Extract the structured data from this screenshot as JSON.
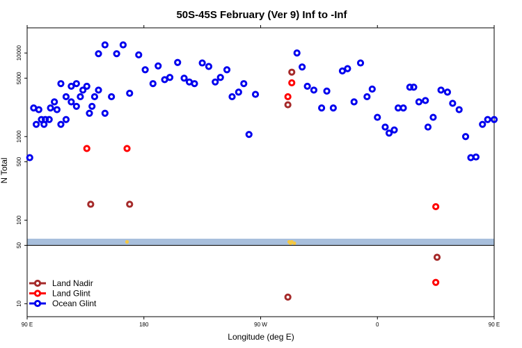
{
  "chart_data": {
    "type": "scatter",
    "title": "50S-45S February (Ver 9)   Inf to -Inf",
    "xlabel": "Longitude (deg E)",
    "ylabel": "N Total",
    "y_scale": "log",
    "xlim": [
      90,
      450
    ],
    "ylim": [
      7,
      20000
    ],
    "x_ticks": [
      {
        "value": 90,
        "label": "90 E"
      },
      {
        "value": 180,
        "label": "180"
      },
      {
        "value": 270,
        "label": "90 W"
      },
      {
        "value": 360,
        "label": "0"
      },
      {
        "value": 450,
        "label": "90 E"
      }
    ],
    "x_ticks_top_extra": [
      {
        "value": 540,
        "label": "180"
      }
    ],
    "y_ticks": [
      {
        "value": 10,
        "label": "10"
      },
      {
        "value": 50,
        "label": "50"
      },
      {
        "value": 100,
        "label": "100"
      },
      {
        "value": 500,
        "label": "500"
      },
      {
        "value": 1000,
        "label": "1000"
      },
      {
        "value": 5000,
        "label": "5000"
      },
      {
        "value": 10000,
        "label": "10000"
      }
    ],
    "band": {
      "from": 50,
      "to": 60,
      "color": "#a8bfdc"
    },
    "baseline_y": 50,
    "legend_placement": "bottom-left",
    "series": [
      {
        "name": "Land Nadir",
        "color": "#a52a2a",
        "points": [
          [
            169,
            155
          ],
          [
            291,
            2400
          ],
          [
            294,
            5900
          ],
          [
            499,
            155
          ],
          [
            291,
            12
          ],
          [
            406,
            36
          ]
        ]
      },
      {
        "name": "Land Glint",
        "color": "#ff0000",
        "points": [
          [
            167,
            720
          ],
          [
            291,
            3000
          ],
          [
            294,
            4400
          ],
          [
            496,
            720
          ],
          [
            405,
            145
          ],
          [
            405,
            18
          ]
        ]
      },
      {
        "name": "Ocean Glint",
        "color": "#0000ee",
        "points": [
          [
            92,
            560
          ],
          [
            97,
            1400
          ],
          [
            101,
            1600
          ],
          [
            104,
            1600
          ],
          [
            108,
            2200
          ],
          [
            113,
            2100
          ],
          [
            116,
            1400
          ],
          [
            120,
            1600
          ],
          [
            124,
            2600
          ],
          [
            128,
            4300
          ],
          [
            131,
            3000
          ],
          [
            136,
            4000
          ],
          [
            140,
            2300
          ],
          [
            145,
            3600
          ],
          [
            150,
            1900
          ],
          [
            155,
            3000
          ],
          [
            159,
            9800
          ],
          [
            164,
            12500
          ],
          [
            169,
            3300
          ],
          [
            176,
            9500
          ],
          [
            181,
            6300
          ],
          [
            187,
            4300
          ],
          [
            191,
            7000
          ],
          [
            196,
            4800
          ],
          [
            200,
            5100
          ],
          [
            206,
            7700
          ],
          [
            211,
            5000
          ],
          [
            215,
            4500
          ],
          [
            219,
            4300
          ],
          [
            225,
            7600
          ],
          [
            230,
            6900
          ],
          [
            235,
            4500
          ],
          [
            239,
            5100
          ],
          [
            244,
            6300
          ],
          [
            248,
            3000
          ],
          [
            253,
            3400
          ],
          [
            257,
            4300
          ],
          [
            261,
            1060
          ],
          [
            266,
            3200
          ],
          [
            298,
            10000
          ],
          [
            302,
            6800
          ],
          [
            306,
            4000
          ],
          [
            311,
            3600
          ],
          [
            317,
            2200
          ],
          [
            321,
            3500
          ],
          [
            326,
            2200
          ],
          [
            333,
            6100
          ],
          [
            337,
            6500
          ],
          [
            342,
            2600
          ],
          [
            347,
            7600
          ],
          [
            352,
            3000
          ],
          [
            356,
            3700
          ],
          [
            360,
            1700
          ],
          [
            366,
            1300
          ],
          [
            369,
            1100
          ],
          [
            373,
            1200
          ],
          [
            376,
            2200
          ],
          [
            380,
            2200
          ],
          [
            385,
            3900
          ],
          [
            388,
            3900
          ],
          [
            392,
            2600
          ],
          [
            397,
            2700
          ],
          [
            399,
            1300
          ],
          [
            403,
            1700
          ],
          [
            409,
            3600
          ],
          [
            414,
            3400
          ],
          [
            418,
            2500
          ],
          [
            423,
            2100
          ],
          [
            428,
            1000
          ],
          [
            432,
            560
          ],
          [
            436,
            570
          ],
          [
            441,
            1400
          ],
          [
            445,
            1600
          ],
          [
            450,
            1600
          ],
          [
            455,
            2200
          ],
          [
            459,
            2100
          ],
          [
            463,
            1400
          ],
          [
            467,
            1600
          ],
          [
            471,
            2600
          ],
          [
            476,
            4300
          ],
          [
            480,
            3000
          ],
          [
            484,
            4000
          ],
          [
            488,
            2300
          ],
          [
            493,
            3600
          ],
          [
            498,
            1900
          ],
          [
            502,
            3000
          ],
          [
            505,
            9800
          ],
          [
            510,
            12500
          ]
        ]
      }
    ],
    "yellow_marks": {
      "color": "#f5c842",
      "y": 55,
      "points": [
        [
          167,
          55
        ],
        [
          293,
          53
        ],
        [
          294,
          55
        ],
        [
          296,
          53
        ],
        [
          292,
          55
        ],
        [
          496,
          55
        ]
      ]
    }
  }
}
